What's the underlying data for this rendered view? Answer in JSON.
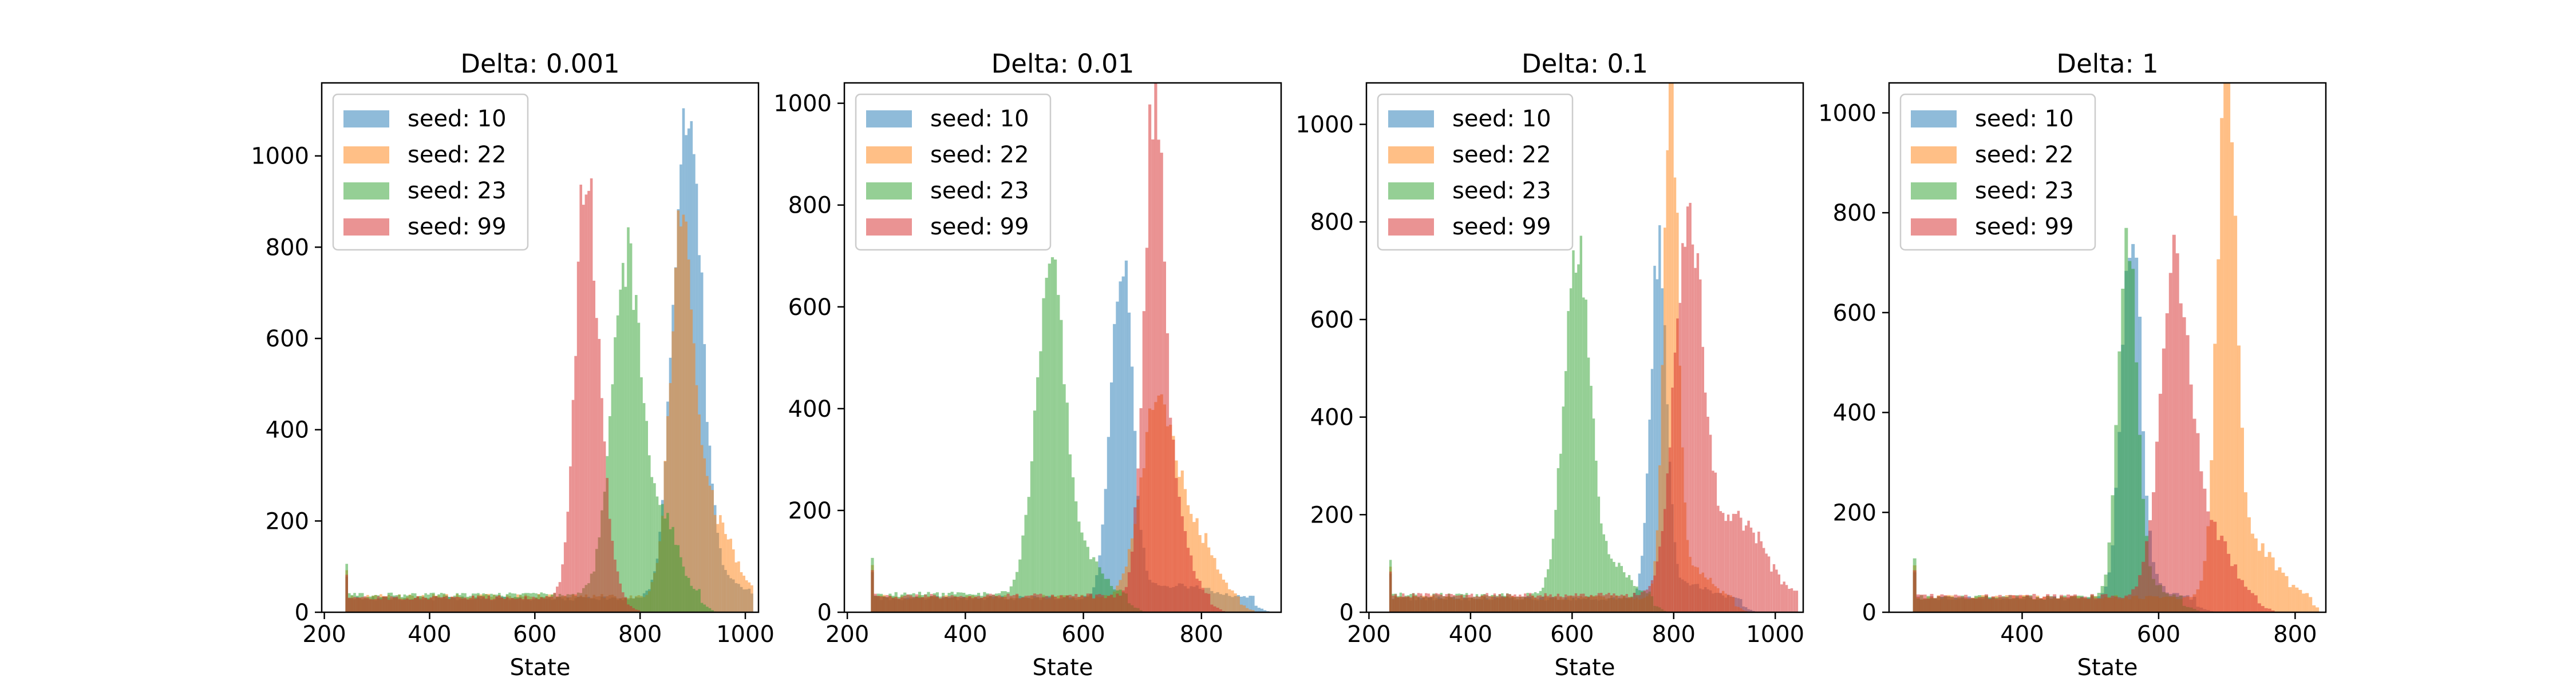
{
  "chart_data": [
    {
      "type": "histogram",
      "title": "Delta: 0.001",
      "xlabel": "State",
      "ylabel": "",
      "xlim": [
        195,
        1025
      ],
      "ylim": [
        0,
        1160
      ],
      "xticks": [
        200,
        400,
        600,
        800,
        1000
      ],
      "yticks": [
        0,
        200,
        400,
        600,
        800,
        1000
      ],
      "legend": "top-left",
      "series": [
        {
          "name": "seed: 10",
          "color": "#1f77b4",
          "flat_start": 240,
          "flat_level": 30,
          "peak": [
            890,
            1110,
            26
          ],
          "tail": [
            950,
            45,
            40
          ]
        },
        {
          "name": "seed: 22",
          "color": "#ff7f0e",
          "flat_start": 240,
          "flat_level": 35,
          "peak": [
            880,
            800,
            22
          ],
          "tail": [
            940,
            180,
            35
          ]
        },
        {
          "name": "seed: 23",
          "color": "#2ca02c",
          "flat_start": 240,
          "flat_level": 38,
          "peak": [
            775,
            750,
            28
          ],
          "tail": [
            850,
            150,
            25
          ]
        },
        {
          "name": "seed: 99",
          "color": "#d62728",
          "flat_start": 240,
          "flat_level": 32,
          "peak": [
            698,
            950,
            20
          ],
          "tail": [
            735,
            120,
            15
          ]
        }
      ]
    },
    {
      "type": "histogram",
      "title": "Delta: 0.01",
      "xlabel": "State",
      "ylabel": "",
      "xlim": [
        195,
        935
      ],
      "ylim": [
        0,
        1040
      ],
      "xticks": [
        200,
        400,
        600,
        800
      ],
      "yticks": [
        0,
        200,
        400,
        600,
        800,
        1000
      ],
      "legend": "top-left",
      "series": [
        {
          "name": "seed: 10",
          "color": "#1f77b4",
          "flat_start": 240,
          "flat_level": 28,
          "peak": [
            665,
            670,
            18
          ],
          "tail": [
            760,
            25,
            50
          ]
        },
        {
          "name": "seed: 22",
          "color": "#ff7f0e",
          "flat_start": 240,
          "flat_level": 30,
          "peak": [
            730,
            400,
            30
          ],
          "tail": [
            800,
            100,
            25
          ]
        },
        {
          "name": "seed: 23",
          "color": "#2ca02c",
          "flat_start": 240,
          "flat_level": 35,
          "peak": [
            545,
            630,
            25
          ],
          "tail": [
            610,
            60,
            25
          ]
        },
        {
          "name": "seed: 99",
          "color": "#d62728",
          "flat_start": 240,
          "flat_level": 32,
          "peak": [
            720,
            980,
            17
          ],
          "tail": [
            760,
            150,
            20
          ]
        }
      ]
    },
    {
      "type": "histogram",
      "title": "Delta: 0.1",
      "xlabel": "State",
      "ylabel": "",
      "xlim": [
        195,
        1055
      ],
      "ylim": [
        0,
        1085
      ],
      "xticks": [
        200,
        400,
        600,
        800,
        1000
      ],
      "yticks": [
        0,
        200,
        400,
        600,
        800,
        1000
      ],
      "legend": "top-left",
      "series": [
        {
          "name": "seed: 10",
          "color": "#1f77b4",
          "flat_start": 240,
          "flat_level": 28,
          "peak": [
            770,
            700,
            16
          ],
          "tail": [
            830,
            30,
            40
          ]
        },
        {
          "name": "seed: 22",
          "color": "#ff7f0e",
          "flat_start": 240,
          "flat_level": 30,
          "peak": [
            795,
            1025,
            14
          ],
          "tail": [
            840,
            60,
            30
          ]
        },
        {
          "name": "seed: 23",
          "color": "#2ca02c",
          "flat_start": 240,
          "flat_level": 35,
          "peak": [
            610,
            720,
            25
          ],
          "tail": [
            680,
            60,
            30
          ]
        },
        {
          "name": "seed: 99",
          "color": "#d62728",
          "flat_start": 240,
          "flat_level": 35,
          "peak": [
            830,
            770,
            28
          ],
          "tail": [
            930,
            160,
            45
          ]
        }
      ]
    },
    {
      "type": "histogram",
      "title": "Delta: 1",
      "xlabel": "State",
      "ylabel": "",
      "xlim": [
        205,
        845
      ],
      "ylim": [
        0,
        1060
      ],
      "xticks": [
        400,
        600,
        800
      ],
      "yticks": [
        0,
        200,
        400,
        600,
        800,
        1000
      ],
      "legend": "top-left",
      "series": [
        {
          "name": "seed: 10",
          "color": "#1f77b4",
          "flat_start": 240,
          "flat_level": 28,
          "peak": [
            560,
            760,
            14
          ],
          "tail": [
            600,
            20,
            20
          ]
        },
        {
          "name": "seed: 22",
          "color": "#ff7f0e",
          "flat_start": 240,
          "flat_level": 30,
          "peak": [
            700,
            1015,
            14
          ],
          "tail": [
            745,
            100,
            30
          ]
        },
        {
          "name": "seed: 23",
          "color": "#2ca02c",
          "flat_start": 240,
          "flat_level": 30,
          "peak": [
            555,
            735,
            14
          ],
          "tail": [
            595,
            20,
            15
          ]
        },
        {
          "name": "seed: 99",
          "color": "#d62728",
          "flat_start": 240,
          "flat_level": 32,
          "peak": [
            625,
            660,
            22
          ],
          "tail": [
            680,
            120,
            25
          ]
        }
      ]
    }
  ]
}
